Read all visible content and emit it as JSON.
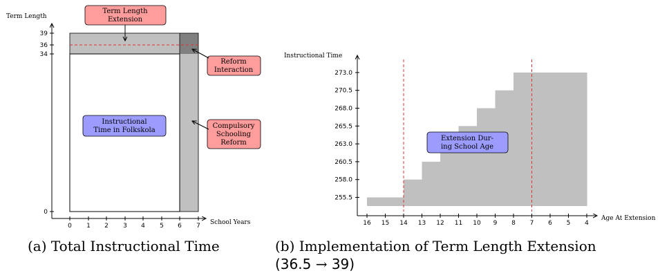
{
  "panel_a": {
    "caption": "(a) Total Instructional Time",
    "y_label": "Term Length",
    "x_label": "School Years",
    "x_ticks": [
      "0",
      "1",
      "2",
      "3",
      "4",
      "5",
      "6",
      "7"
    ],
    "y_ticks": [
      "39",
      "36",
      "34",
      "0"
    ],
    "boxes": {
      "term_length": [
        "Term Length",
        "Extension"
      ],
      "reform_interaction": [
        "Reform",
        "Interaction"
      ],
      "instructional_time": [
        "Instructional",
        "Time in Folkskola"
      ],
      "compulsory": [
        "Compulsory",
        "Schooling",
        "Reform"
      ]
    }
  },
  "panel_b": {
    "caption_line1": "(b) Implementation of Term Length Extension",
    "caption_line2_pre": "(36.5",
    "caption_arrow": "→",
    "caption_line2_post": "39)",
    "y_label": "Instructional Time",
    "x_label": "Age At Extension",
    "box": [
      "Extension Dur-",
      "ing School Age"
    ]
  },
  "colors": {
    "gray": "#c0c0c0",
    "dark_gray": "#808080",
    "red": "#e03030",
    "red_box": "#ff9c9c",
    "blue_box": "#9c9cff"
  },
  "chart_data": {
    "type": "area",
    "x": [
      "16",
      "15",
      "14",
      "13",
      "12",
      "11",
      "10",
      "9",
      "8",
      "7",
      "6",
      "5",
      "4"
    ],
    "y": [
      255.5,
      255.5,
      258.0,
      260.5,
      263.0,
      265.5,
      268.0,
      270.5,
      273.0,
      273.0,
      273.0,
      273.0,
      273.0
    ],
    "y_ticks": [
      255.5,
      258.0,
      260.5,
      263.0,
      265.5,
      268.0,
      270.5,
      273.0
    ],
    "reference_lines_x": [
      "14",
      "7"
    ],
    "xlabel": "Age At Extension",
    "ylabel": "Instructional Time"
  }
}
